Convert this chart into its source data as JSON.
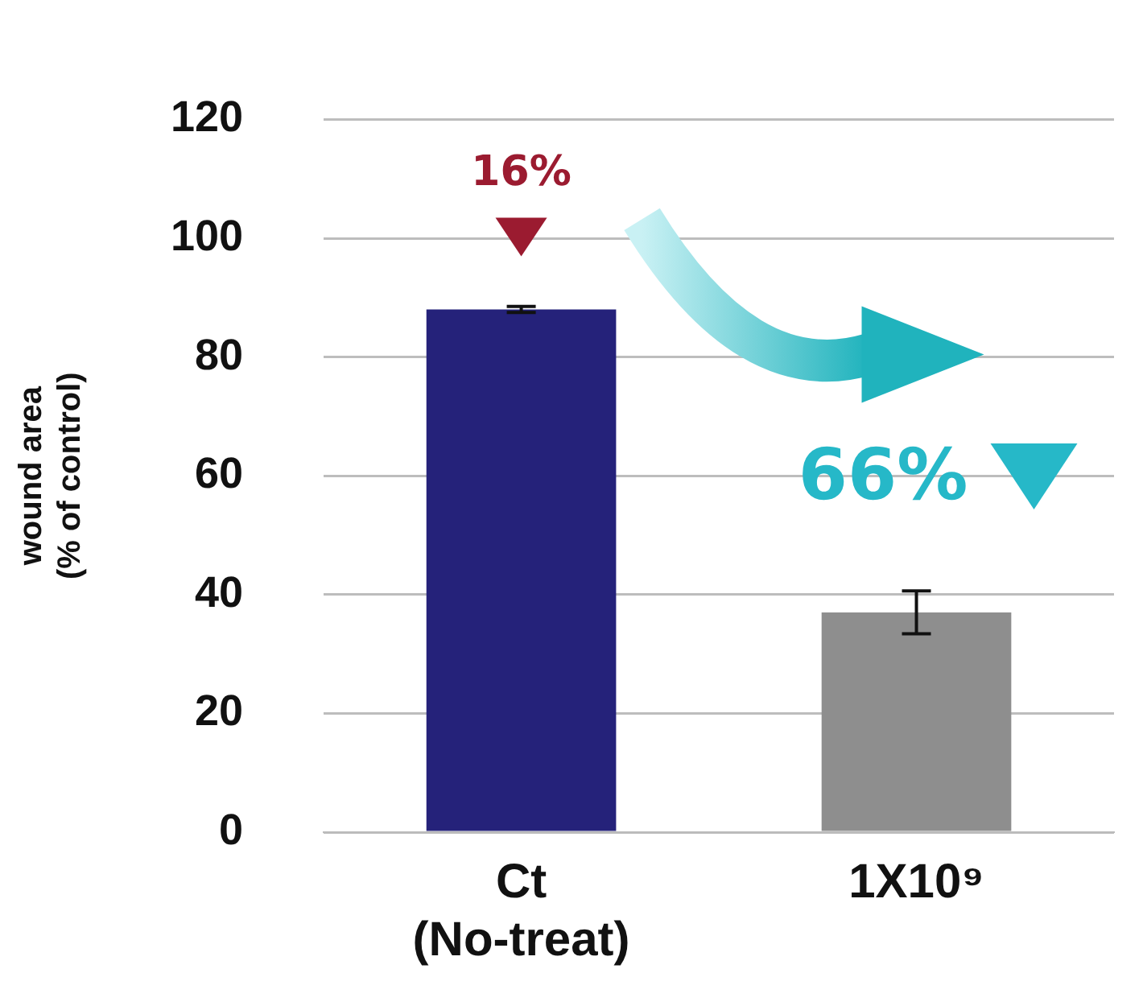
{
  "chart_data": {
    "type": "bar",
    "ylabel": "wound area\n(% of control)",
    "categories": [
      "Ct\n(No-treat)",
      "1X10⁹"
    ],
    "values": [
      88,
      37
    ],
    "errors": [
      0.5,
      3.6
    ],
    "colors": [
      "#25227a",
      "#8e8e8e"
    ],
    "ylim": [
      0,
      120
    ],
    "yticks": [
      0,
      20,
      40,
      60,
      80,
      100,
      120
    ],
    "grid": "y",
    "annotations": [
      "16%",
      "66%"
    ],
    "legend": false
  }
}
